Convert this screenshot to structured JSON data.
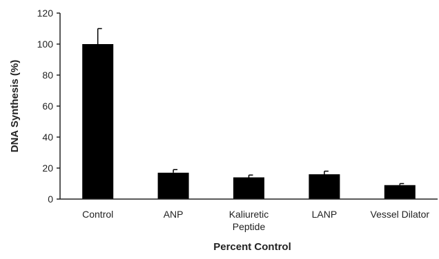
{
  "chart_data": {
    "type": "bar",
    "title": "",
    "xlabel": "Percent Control",
    "ylabel": "DNA Synthesis (%)",
    "ylim": [
      0,
      120
    ],
    "yticks": [
      0,
      20,
      40,
      60,
      80,
      100,
      120
    ],
    "ytick_labels": [
      "0",
      "20",
      "40",
      "60",
      "80",
      "100",
      "120"
    ],
    "categories": [
      [
        "Control"
      ],
      [
        "ANP"
      ],
      [
        "Kaliuretic",
        "Peptide"
      ],
      [
        "LANP"
      ],
      [
        "Vessel Dilator"
      ]
    ],
    "values": [
      100,
      17,
      14,
      16,
      9
    ],
    "error_bars": [
      10,
      2,
      1.5,
      2,
      1
    ],
    "grid": false,
    "legend": false,
    "bar_color": "#000000",
    "axis_color": "#222222"
  }
}
